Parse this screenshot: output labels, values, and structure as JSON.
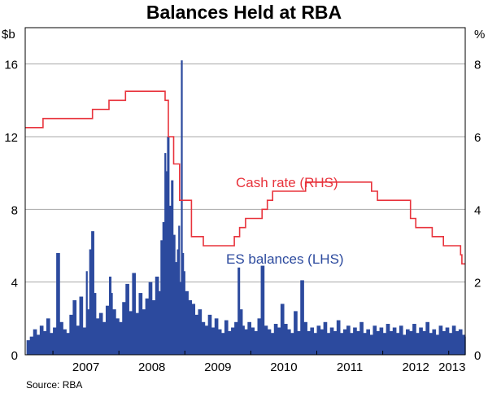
{
  "chart_data": {
    "type": "line+bar",
    "title": "Balances Held at RBA",
    "left_axis": {
      "unit": "$b",
      "ylim": [
        0,
        18
      ],
      "ticks": [
        0,
        4,
        8,
        12,
        16
      ]
    },
    "right_axis": {
      "unit": "%",
      "ylim": [
        0,
        9
      ],
      "ticks": [
        0,
        2,
        4,
        6,
        8
      ]
    },
    "x_axis": {
      "range": [
        2006.58,
        2013.25
      ],
      "tick_labels": [
        "2007",
        "2008",
        "2009",
        "2010",
        "2011",
        "2012",
        "2013"
      ]
    },
    "grid": true,
    "series": [
      {
        "name": "Cash rate (RHS)",
        "type": "step-line",
        "axis": "right",
        "color": "#e8333c",
        "points": [
          [
            2006.58,
            6.25
          ],
          [
            2006.85,
            6.25
          ],
          [
            2006.85,
            6.5
          ],
          [
            2007.6,
            6.5
          ],
          [
            2007.6,
            6.75
          ],
          [
            2007.85,
            6.75
          ],
          [
            2007.85,
            7.0
          ],
          [
            2008.1,
            7.0
          ],
          [
            2008.1,
            7.25
          ],
          [
            2008.7,
            7.25
          ],
          [
            2008.7,
            7.0
          ],
          [
            2008.75,
            7.0
          ],
          [
            2008.75,
            6.0
          ],
          [
            2008.83,
            6.0
          ],
          [
            2008.83,
            5.25
          ],
          [
            2008.92,
            5.25
          ],
          [
            2008.92,
            4.25
          ],
          [
            2009.1,
            4.25
          ],
          [
            2009.1,
            3.25
          ],
          [
            2009.28,
            3.25
          ],
          [
            2009.28,
            3.0
          ],
          [
            2009.75,
            3.0
          ],
          [
            2009.75,
            3.25
          ],
          [
            2009.83,
            3.25
          ],
          [
            2009.83,
            3.5
          ],
          [
            2009.92,
            3.5
          ],
          [
            2009.92,
            3.75
          ],
          [
            2010.17,
            3.75
          ],
          [
            2010.17,
            4.0
          ],
          [
            2010.25,
            4.0
          ],
          [
            2010.25,
            4.25
          ],
          [
            2010.33,
            4.25
          ],
          [
            2010.33,
            4.5
          ],
          [
            2010.83,
            4.5
          ],
          [
            2010.83,
            4.75
          ],
          [
            2011.83,
            4.75
          ],
          [
            2011.83,
            4.5
          ],
          [
            2011.92,
            4.5
          ],
          [
            2011.92,
            4.25
          ],
          [
            2012.42,
            4.25
          ],
          [
            2012.42,
            3.75
          ],
          [
            2012.5,
            3.75
          ],
          [
            2012.5,
            3.5
          ],
          [
            2012.75,
            3.5
          ],
          [
            2012.75,
            3.25
          ],
          [
            2012.92,
            3.25
          ],
          [
            2012.92,
            3.0
          ],
          [
            2013.18,
            3.0
          ],
          [
            2013.18,
            2.75
          ],
          [
            2013.2,
            2.75
          ],
          [
            2013.2,
            2.5
          ],
          [
            2013.25,
            2.5
          ]
        ]
      },
      {
        "name": "ES balances (LHS)",
        "type": "bar",
        "axis": "left",
        "color": "#2c4a9e",
        "points": [
          [
            2006.6,
            0.8
          ],
          [
            2006.65,
            1.0
          ],
          [
            2006.7,
            1.4
          ],
          [
            2006.75,
            1.1
          ],
          [
            2006.8,
            1.6
          ],
          [
            2006.85,
            1.3
          ],
          [
            2006.9,
            2.0
          ],
          [
            2006.95,
            1.2
          ],
          [
            2007.0,
            1.5
          ],
          [
            2007.05,
            5.6
          ],
          [
            2007.1,
            1.8
          ],
          [
            2007.15,
            1.4
          ],
          [
            2007.2,
            1.2
          ],
          [
            2007.25,
            2.2
          ],
          [
            2007.3,
            3.0
          ],
          [
            2007.35,
            1.6
          ],
          [
            2007.4,
            3.2
          ],
          [
            2007.45,
            1.5
          ],
          [
            2007.5,
            4.6
          ],
          [
            2007.52,
            2.5
          ],
          [
            2007.55,
            5.8
          ],
          [
            2007.58,
            6.8
          ],
          [
            2007.62,
            3.4
          ],
          [
            2007.65,
            2.0
          ],
          [
            2007.7,
            2.3
          ],
          [
            2007.75,
            1.8
          ],
          [
            2007.8,
            2.7
          ],
          [
            2007.85,
            4.3
          ],
          [
            2007.88,
            3.4
          ],
          [
            2007.9,
            2.5
          ],
          [
            2007.95,
            2.0
          ],
          [
            2008.0,
            1.8
          ],
          [
            2008.05,
            2.9
          ],
          [
            2008.1,
            3.9
          ],
          [
            2008.15,
            2.4
          ],
          [
            2008.2,
            4.5
          ],
          [
            2008.25,
            2.3
          ],
          [
            2008.3,
            3.4
          ],
          [
            2008.35,
            2.5
          ],
          [
            2008.4,
            3.1
          ],
          [
            2008.45,
            4.0
          ],
          [
            2008.5,
            3.0
          ],
          [
            2008.55,
            4.3
          ],
          [
            2008.6,
            3.5
          ],
          [
            2008.63,
            6.3
          ],
          [
            2008.66,
            7.3
          ],
          [
            2008.69,
            11.1
          ],
          [
            2008.71,
            10.1
          ],
          [
            2008.73,
            12.0
          ],
          [
            2008.76,
            8.2
          ],
          [
            2008.79,
            9.6
          ],
          [
            2008.82,
            6.6
          ],
          [
            2008.85,
            5.1
          ],
          [
            2008.88,
            5.8
          ],
          [
            2008.9,
            7.1
          ],
          [
            2008.92,
            4.0
          ],
          [
            2008.94,
            16.2
          ],
          [
            2008.96,
            5.6
          ],
          [
            2008.98,
            4.6
          ],
          [
            2009.0,
            3.5
          ],
          [
            2009.05,
            3.0
          ],
          [
            2009.1,
            2.8
          ],
          [
            2009.15,
            2.2
          ],
          [
            2009.2,
            2.5
          ],
          [
            2009.25,
            1.8
          ],
          [
            2009.3,
            1.6
          ],
          [
            2009.35,
            2.2
          ],
          [
            2009.4,
            1.5
          ],
          [
            2009.45,
            2.0
          ],
          [
            2009.5,
            1.4
          ],
          [
            2009.55,
            1.2
          ],
          [
            2009.6,
            1.9
          ],
          [
            2009.65,
            1.3
          ],
          [
            2009.7,
            1.5
          ],
          [
            2009.75,
            1.8
          ],
          [
            2009.8,
            4.8
          ],
          [
            2009.83,
            2.5
          ],
          [
            2009.87,
            1.6
          ],
          [
            2009.9,
            1.4
          ],
          [
            2009.95,
            1.8
          ],
          [
            2010.0,
            1.5
          ],
          [
            2010.05,
            1.3
          ],
          [
            2010.1,
            2.0
          ],
          [
            2010.15,
            4.9
          ],
          [
            2010.2,
            1.6
          ],
          [
            2010.25,
            1.4
          ],
          [
            2010.3,
            1.2
          ],
          [
            2010.35,
            1.7
          ],
          [
            2010.4,
            1.5
          ],
          [
            2010.45,
            2.8
          ],
          [
            2010.5,
            1.7
          ],
          [
            2010.55,
            1.4
          ],
          [
            2010.6,
            1.2
          ],
          [
            2010.65,
            2.4
          ],
          [
            2010.7,
            1.3
          ],
          [
            2010.75,
            4.1
          ],
          [
            2010.8,
            1.8
          ],
          [
            2010.85,
            1.3
          ],
          [
            2010.9,
            1.5
          ],
          [
            2010.95,
            1.2
          ],
          [
            2011.0,
            1.6
          ],
          [
            2011.05,
            1.4
          ],
          [
            2011.1,
            1.8
          ],
          [
            2011.15,
            1.2
          ],
          [
            2011.2,
            1.5
          ],
          [
            2011.25,
            1.3
          ],
          [
            2011.3,
            1.9
          ],
          [
            2011.35,
            1.2
          ],
          [
            2011.4,
            1.4
          ],
          [
            2011.45,
            1.6
          ],
          [
            2011.5,
            1.2
          ],
          [
            2011.55,
            1.5
          ],
          [
            2011.6,
            1.3
          ],
          [
            2011.65,
            1.8
          ],
          [
            2011.7,
            1.2
          ],
          [
            2011.75,
            1.4
          ],
          [
            2011.8,
            1.1
          ],
          [
            2011.85,
            1.6
          ],
          [
            2011.9,
            1.3
          ],
          [
            2011.95,
            1.5
          ],
          [
            2012.0,
            1.2
          ],
          [
            2012.05,
            1.7
          ],
          [
            2012.1,
            1.3
          ],
          [
            2012.15,
            1.5
          ],
          [
            2012.2,
            1.2
          ],
          [
            2012.25,
            1.6
          ],
          [
            2012.3,
            1.1
          ],
          [
            2012.35,
            1.4
          ],
          [
            2012.4,
            1.3
          ],
          [
            2012.45,
            1.7
          ],
          [
            2012.5,
            1.2
          ],
          [
            2012.55,
            1.5
          ],
          [
            2012.6,
            1.3
          ],
          [
            2012.65,
            1.8
          ],
          [
            2012.7,
            1.2
          ],
          [
            2012.75,
            1.4
          ],
          [
            2012.8,
            1.1
          ],
          [
            2012.85,
            1.6
          ],
          [
            2012.9,
            1.3
          ],
          [
            2012.95,
            1.5
          ],
          [
            2013.0,
            1.2
          ],
          [
            2013.05,
            1.6
          ],
          [
            2013.1,
            1.3
          ],
          [
            2013.15,
            1.4
          ],
          [
            2013.2,
            1.1
          ],
          [
            2013.24,
            1.0
          ]
        ]
      }
    ],
    "annotations": [
      {
        "text": "Cash rate (RHS)",
        "color": "#e8333c"
      },
      {
        "text": "ES balances (LHS)",
        "color": "#2c4a9e"
      }
    ],
    "source": "Source: RBA"
  }
}
